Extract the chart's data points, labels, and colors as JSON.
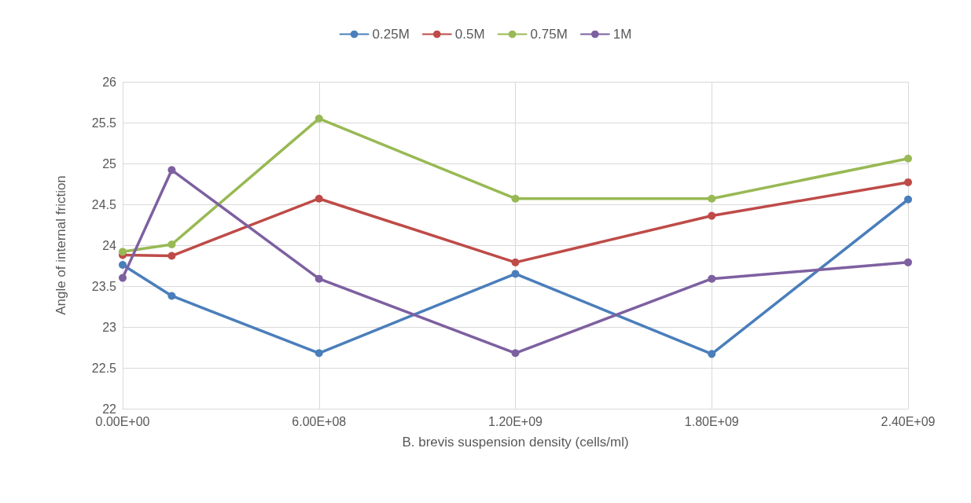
{
  "chart_data": {
    "type": "line",
    "xlabel": "B. brevis suspension density (cells/ml)",
    "ylabel": "Angle of internal friction",
    "x": [
      0,
      150000000,
      600000000,
      1200000000,
      1800000000,
      2400000000
    ],
    "series": [
      {
        "name": "0.25M",
        "color": "#4a7ebb",
        "values": [
          23.76,
          23.38,
          22.68,
          23.65,
          22.67,
          24.56
        ]
      },
      {
        "name": "0.5M",
        "color": "#be4b48",
        "values": [
          23.88,
          23.87,
          24.57,
          23.79,
          24.36,
          24.77
        ]
      },
      {
        "name": "0.75M",
        "color": "#98b954",
        "values": [
          23.92,
          24.01,
          25.55,
          24.57,
          24.57,
          25.06
        ]
      },
      {
        "name": "1M",
        "color": "#7d60a0",
        "values": [
          23.6,
          24.92,
          23.59,
          22.68,
          23.59,
          23.79
        ]
      }
    ],
    "xlim": [
      0,
      2400000000
    ],
    "xticks": [
      {
        "value": 0,
        "label": "0.00E+00"
      },
      {
        "value": 600000000,
        "label": "6.00E+08"
      },
      {
        "value": 1200000000,
        "label": "1.20E+09"
      },
      {
        "value": 1800000000,
        "label": "1.80E+09"
      },
      {
        "value": 2400000000,
        "label": "2.40E+09"
      }
    ],
    "ylim": [
      22,
      26
    ],
    "yticks": [
      22,
      22.5,
      23,
      23.5,
      24,
      24.5,
      25,
      25.5,
      26
    ],
    "grid": true,
    "legend": "top",
    "marker": "circle",
    "line_style": "solid"
  }
}
